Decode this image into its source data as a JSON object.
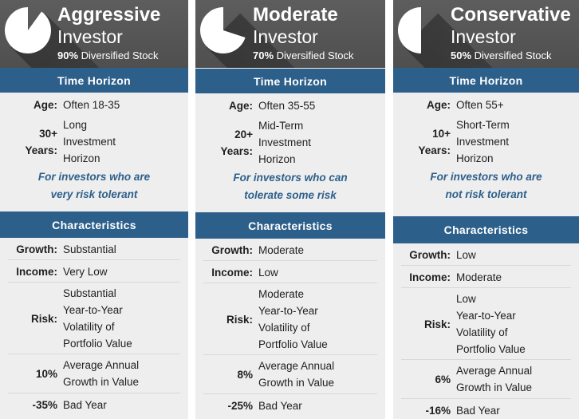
{
  "investors": [
    {
      "title": "Aggressive",
      "subtitle": "Investor",
      "stock_pct": "90%",
      "stock_text": "Diversified Stock",
      "stock_fraction": 0.9,
      "time_horizon_header": "Time Horizon",
      "age_label": "Age:",
      "age_value": "Often 18-35",
      "years_num": "30+",
      "years_label": "Years:",
      "horizon_lines": [
        "Long",
        "Investment",
        "Horizon"
      ],
      "note_lines": [
        "For investors who are",
        "very risk tolerant"
      ],
      "characteristics_header": "Characteristics",
      "growth_label": "Growth:",
      "growth_value": "Substantial",
      "income_label": "Income:",
      "income_value": "Very Low",
      "risk_label": "Risk:",
      "risk_lines": [
        "Substantial",
        "Year-to-Year",
        "Volatility of",
        "Portfolio Value"
      ],
      "annual_pct": "10%",
      "annual_lines": [
        "Average Annual",
        "Growth in Value"
      ],
      "bad_pct": "-35%",
      "bad_label": "Bad Year"
    },
    {
      "title": "Moderate",
      "subtitle": "Investor",
      "stock_pct": "70%",
      "stock_text": "Diversified Stock",
      "stock_fraction": 0.7,
      "time_horizon_header": "Time Horizon",
      "age_label": "Age:",
      "age_value": "Often 35-55",
      "years_num": "20+",
      "years_label": "Years:",
      "horizon_lines": [
        "Mid-Term",
        "Investment",
        "Horizon"
      ],
      "note_lines": [
        "For investors who can",
        "tolerate some risk"
      ],
      "characteristics_header": "Characteristics",
      "growth_label": "Growth:",
      "growth_value": "Moderate",
      "income_label": "Income:",
      "income_value": "Low",
      "risk_label": "Risk:",
      "risk_lines": [
        "Moderate",
        "Year-to-Year",
        "Volatility of",
        "Portfolio Value"
      ],
      "annual_pct": "8%",
      "annual_lines": [
        "Average Annual",
        "Growth in Value"
      ],
      "bad_pct": "-25%",
      "bad_label": "Bad Year"
    },
    {
      "title": "Conservative",
      "subtitle": "Investor",
      "stock_pct": "50%",
      "stock_text": "Diversified Stock",
      "stock_fraction": 0.5,
      "time_horizon_header": "Time Horizon",
      "age_label": "Age:",
      "age_value": "Often 55+",
      "years_num": "10+",
      "years_label": "Years:",
      "horizon_lines": [
        "Short-Term",
        "Investment",
        "Horizon"
      ],
      "note_lines": [
        "For investors who are",
        "not risk tolerant"
      ],
      "characteristics_header": "Characteristics",
      "growth_label": "Growth:",
      "growth_value": "Low",
      "income_label": "Income:",
      "income_value": "Moderate",
      "risk_label": "Risk:",
      "risk_lines": [
        "Low",
        "Year-to-Year",
        "Volatility of",
        "Portfolio Value"
      ],
      "annual_pct": "6%",
      "annual_lines": [
        "Average Annual",
        "Growth in Value"
      ],
      "bad_pct": "-16%",
      "bad_label": "Bad Year"
    }
  ],
  "colors": {
    "banner_bg": "#555555",
    "section_header_bg": "#2d5f8b",
    "note_text": "#2d5f8b",
    "panel_bg": "#eeeeee",
    "pie_fill": "#ffffff"
  },
  "icons": [
    "pie-chart-icon"
  ]
}
